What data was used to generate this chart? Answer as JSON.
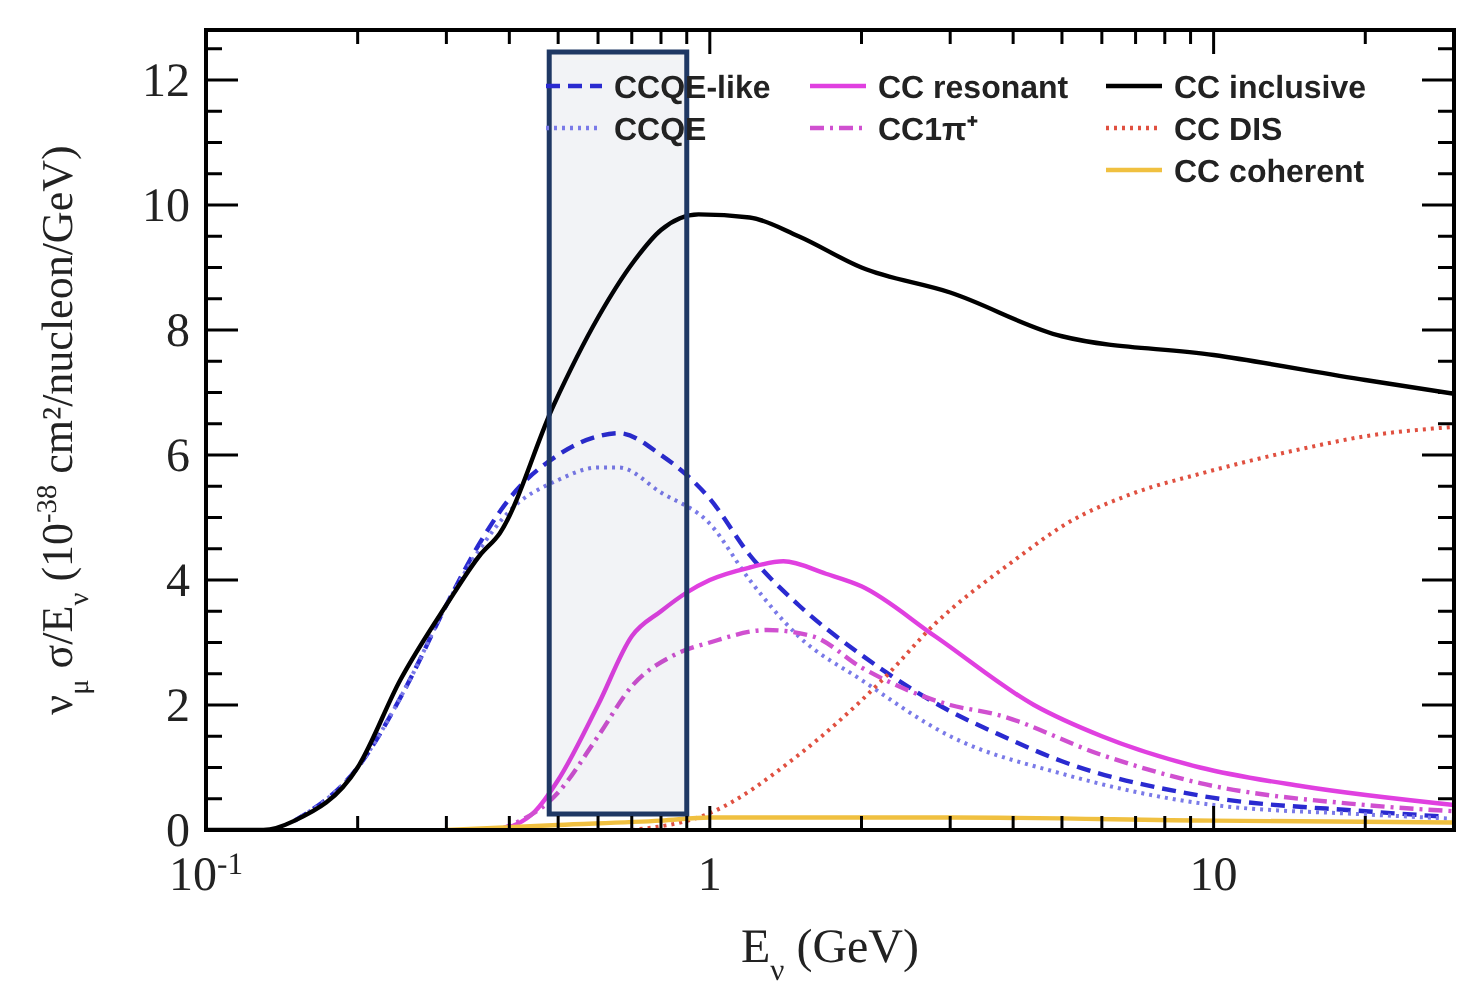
{
  "chart_data": {
    "type": "line",
    "xlabel": "E$_{ν}$ (GeV)",
    "ylabel": "ν$_{μ}$ σ/E$_{ν}$ (10$^{-38}$ cm²/nucleon/GeV)",
    "log": "x",
    "xlim": [
      0.1,
      30
    ],
    "ylim": [
      0,
      12.8
    ],
    "xticks": [
      {
        "value": 0.1,
        "label": "10$^{-1}$"
      },
      {
        "value": 0.2,
        "label": null
      },
      {
        "value": 0.3,
        "label": null
      },
      {
        "value": 0.4,
        "label": null
      },
      {
        "value": 0.5,
        "label": null
      },
      {
        "value": 0.6,
        "label": null
      },
      {
        "value": 0.7,
        "label": null
      },
      {
        "value": 0.8,
        "label": null
      },
      {
        "value": 0.9,
        "label": null
      },
      1,
      {
        "value": 2,
        "label": null
      },
      {
        "value": 3,
        "label": null
      },
      {
        "value": 4,
        "label": null
      },
      {
        "value": 5,
        "label": null
      },
      {
        "value": 6,
        "label": null
      },
      {
        "value": 7,
        "label": null
      },
      {
        "value": 8,
        "label": null
      },
      {
        "value": 9,
        "label": null
      },
      10,
      {
        "value": 20,
        "label": null
      },
      {
        "value": 30,
        "label": null
      }
    ],
    "yticks": [
      0,
      {
        "value": 0.5,
        "label": null
      },
      {
        "value": 1,
        "label": null
      },
      {
        "value": 1.5,
        "label": null
      },
      2,
      {
        "value": 2.5,
        "label": null
      },
      {
        "value": 3,
        "label": null
      },
      {
        "value": 3.5,
        "label": null
      },
      4,
      {
        "value": 4.5,
        "label": null
      },
      {
        "value": 5,
        "label": null
      },
      {
        "value": 5.5,
        "label": null
      },
      6,
      {
        "value": 6.5,
        "label": null
      },
      {
        "value": 7,
        "label": null
      },
      {
        "value": 7.5,
        "label": null
      },
      8,
      {
        "value": 8.5,
        "label": null
      },
      {
        "value": 9,
        "label": null
      },
      {
        "value": 9.5,
        "label": null
      },
      10,
      {
        "value": 10.5,
        "label": null
      },
      {
        "value": 11,
        "label": null
      },
      {
        "value": 11.5,
        "label": null
      },
      12,
      {
        "value": 12.5,
        "label": null
      }
    ],
    "grid": false,
    "legend": "top right",
    "bands": [
      {
        "axis": "x",
        "from": 0.48,
        "to": 0.9,
        "color": "#1f3864"
      }
    ],
    "series": [
      {
        "name": "CCQE-like",
        "color": "#2a2ad0",
        "line_style": "dashed",
        "x": [
          0.15,
          0.2,
          0.25,
          0.3,
          0.35,
          0.4,
          0.5,
          0.6,
          0.66,
          0.8,
          1,
          1.2,
          1.5,
          2,
          3,
          3.7,
          5,
          9.4,
          20,
          28
        ],
        "values": [
          0.15,
          1.0,
          2.3,
          3.6,
          4.6,
          5.3,
          6.0,
          6.3,
          6.35,
          6.0,
          5.3,
          4.4,
          3.6,
          2.8,
          1.9,
          1.55,
          1.1,
          0.55,
          0.3,
          0.22
        ]
      },
      {
        "name": "CCQE",
        "color": "#7a7ae8",
        "line_style": "dotted",
        "x": [
          0.15,
          0.2,
          0.25,
          0.3,
          0.35,
          0.4,
          0.5,
          0.6,
          0.66,
          0.8,
          1,
          1.2,
          1.5,
          2,
          3,
          5,
          10,
          20,
          30
        ],
        "values": [
          0.15,
          1.0,
          2.3,
          3.6,
          4.5,
          5.1,
          5.6,
          5.8,
          5.8,
          5.4,
          4.9,
          4.0,
          3.1,
          2.4,
          1.5,
          0.9,
          0.4,
          0.25,
          0.18
        ]
      },
      {
        "name": "CC resonant",
        "color": "#e040e0",
        "line_style": "solid",
        "x": [
          0.38,
          0.45,
          0.5,
          0.6,
          0.7,
          0.8,
          0.9,
          1.0,
          1.2,
          1.4,
          1.7,
          2,
          2.8,
          4.4,
          6,
          9.4,
          15,
          30
        ],
        "values": [
          0,
          0.3,
          0.8,
          2.0,
          3.1,
          3.5,
          3.8,
          4.0,
          4.2,
          4.3,
          4.1,
          3.9,
          3.1,
          2.0,
          1.5,
          1.0,
          0.7,
          0.4
        ]
      },
      {
        "name": "CC1π⁺",
        "color": "#d050d0",
        "line_style": "dashdot",
        "x": [
          0.38,
          0.5,
          0.6,
          0.7,
          0.85,
          1,
          1.3,
          1.6,
          2,
          3,
          3.7,
          6,
          9.4,
          20,
          30
        ],
        "values": [
          0,
          0.6,
          1.5,
          2.3,
          2.8,
          3.0,
          3.2,
          3.1,
          2.6,
          2.0,
          1.85,
          1.2,
          0.75,
          0.4,
          0.3
        ]
      },
      {
        "name": "CC inclusive",
        "color": "#000000",
        "line_style": "solid",
        "x": [
          0.1,
          0.13,
          0.15,
          0.2,
          0.243,
          0.3,
          0.35,
          0.383,
          0.49,
          0.6,
          0.707,
          0.8,
          0.95,
          1.2,
          1.5,
          2,
          3,
          5,
          10,
          20,
          30
        ],
        "values": [
          0,
          0,
          0.15,
          1.0,
          2.4,
          3.6,
          4.4,
          4.75,
          6.8,
          8.2,
          9.1,
          9.6,
          9.85,
          9.8,
          9.5,
          9.0,
          8.6,
          7.9,
          7.6,
          7.2,
          6.98
        ]
      },
      {
        "name": "CC DIS",
        "color": "#e05040",
        "line_style": "dotted",
        "x": [
          0.7,
          1,
          1.5,
          2.2,
          2.8,
          4,
          5.1,
          7,
          9.4,
          15,
          20,
          30
        ],
        "values": [
          0,
          0.27,
          1.2,
          2.4,
          3.3,
          4.3,
          4.9,
          5.4,
          5.7,
          6.1,
          6.3,
          6.45
        ]
      },
      {
        "name": "CC coherent",
        "color": "#f0c040",
        "line_style": "solid",
        "x": [
          0.3,
          0.5,
          0.8,
          1,
          3,
          10,
          30
        ],
        "values": [
          0,
          0.08,
          0.15,
          0.2,
          0.2,
          0.15,
          0.12
        ]
      }
    ]
  }
}
